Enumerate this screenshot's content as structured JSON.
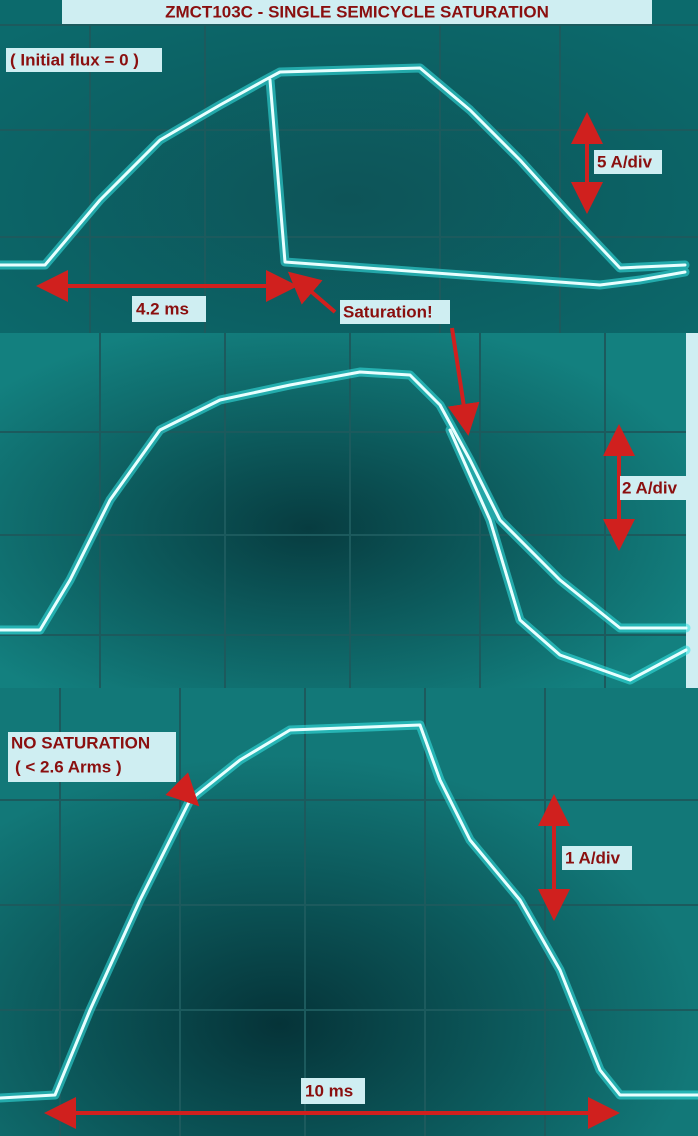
{
  "title": "ZMCT103C  -  SINGLE SEMICYCLE SATURATION",
  "panels": [
    {
      "note": "( Initial flux = 0 )",
      "scale": "5 A/div",
      "time": "4.2 ms",
      "callout": "Saturation!"
    },
    {
      "scale": "2 A/div"
    },
    {
      "note": "NO SATURATION",
      "subnote": "( < 2.6 Arms )",
      "scale": "1 A/div",
      "time": "10 ms"
    }
  ]
}
